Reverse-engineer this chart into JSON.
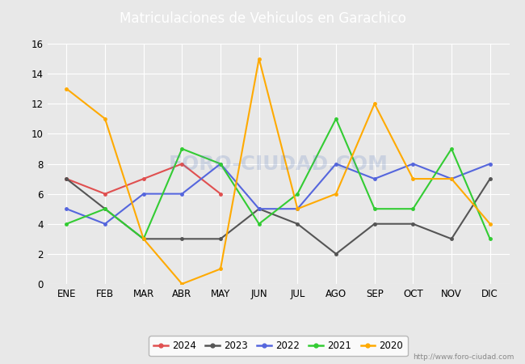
{
  "title": "Matriculaciones de Vehiculos en Garachico",
  "months": [
    "ENE",
    "FEB",
    "MAR",
    "ABR",
    "MAY",
    "JUN",
    "JUL",
    "AGO",
    "SEP",
    "OCT",
    "NOV",
    "DIC"
  ],
  "series": {
    "2024": [
      7,
      6,
      7,
      8,
      6,
      null,
      null,
      null,
      null,
      null,
      null,
      null
    ],
    "2023": [
      7,
      5,
      3,
      3,
      3,
      5,
      4,
      2,
      4,
      4,
      3,
      7
    ],
    "2022": [
      5,
      4,
      6,
      6,
      8,
      5,
      5,
      8,
      7,
      8,
      7,
      8
    ],
    "2021": [
      4,
      5,
      3,
      9,
      8,
      4,
      6,
      11,
      5,
      5,
      9,
      3
    ],
    "2020": [
      13,
      11,
      3,
      0,
      1,
      15,
      5,
      6,
      12,
      7,
      7,
      4
    ]
  },
  "colors": {
    "2024": "#e05050",
    "2023": "#555555",
    "2022": "#5566dd",
    "2021": "#33cc33",
    "2020": "#ffaa00"
  },
  "ylim": [
    0,
    16
  ],
  "yticks": [
    0,
    2,
    4,
    6,
    8,
    10,
    12,
    14,
    16
  ],
  "background_color": "#e8e8e8",
  "plot_bg_color": "#e8e8e8",
  "title_bg_color": "#4472c4",
  "title_text_color": "#ffffff",
  "grid_color": "#ffffff",
  "watermark": "FORO-CIUDAD.COM",
  "url": "http://www.foro-ciudad.com",
  "legend_order": [
    "2024",
    "2023",
    "2022",
    "2021",
    "2020"
  ]
}
